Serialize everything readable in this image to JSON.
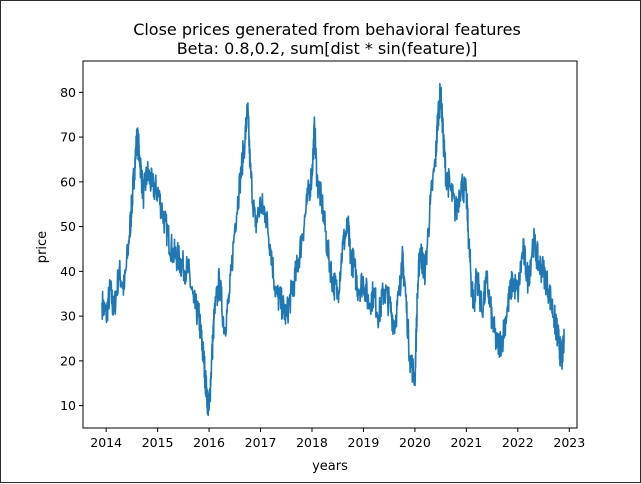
{
  "chart_data": {
    "type": "line",
    "title": "Close prices generated from behavioral features",
    "subtitle": "Beta: 0.8,0.2, sum[dist * sin(feature)]",
    "xlabel": "years",
    "ylabel": "price",
    "xlim": [
      2013.55,
      2023.15
    ],
    "ylim": [
      5,
      87
    ],
    "x_ticks": [
      "2014",
      "2015",
      "2016",
      "2017",
      "2018",
      "2019",
      "2020",
      "2021",
      "2022",
      "2023"
    ],
    "y_ticks": [
      "10",
      "20",
      "30",
      "40",
      "50",
      "60",
      "70",
      "80"
    ],
    "grid": false,
    "line_color": "#1f77b4",
    "series": [
      {
        "x": [
          2013.92,
          2014.0,
          2014.08,
          2014.15,
          2014.25,
          2014.35,
          2014.45,
          2014.5,
          2014.55,
          2014.6,
          2014.65,
          2014.72,
          2014.8,
          2014.9,
          2015.0,
          2015.1,
          2015.2,
          2015.3,
          2015.4,
          2015.5,
          2015.6,
          2015.7,
          2015.8,
          2015.85,
          2015.9,
          2015.95,
          2016.0,
          2016.05,
          2016.1,
          2016.2,
          2016.3,
          2016.4,
          2016.5,
          2016.6,
          2016.7,
          2016.75,
          2016.8,
          2016.9,
          2017.0,
          2017.1,
          2017.2,
          2017.3,
          2017.4,
          2017.5,
          2017.6,
          2017.7,
          2017.8,
          2017.9,
          2018.0,
          2018.05,
          2018.1,
          2018.2,
          2018.3,
          2018.4,
          2018.5,
          2018.6,
          2018.7,
          2018.75,
          2018.8,
          2018.9,
          2019.0,
          2019.1,
          2019.2,
          2019.3,
          2019.4,
          2019.5,
          2019.6,
          2019.7,
          2019.75,
          2019.8,
          2019.9,
          2020.0,
          2020.05,
          2020.1,
          2020.15,
          2020.2,
          2020.3,
          2020.4,
          2020.45,
          2020.5,
          2020.55,
          2020.6,
          2020.7,
          2020.8,
          2020.9,
          2021.0,
          2021.05,
          2021.1,
          2021.15,
          2021.2,
          2021.3,
          2021.4,
          2021.5,
          2021.6,
          2021.7,
          2021.8,
          2021.9,
          2022.0,
          2022.1,
          2022.2,
          2022.3,
          2022.4,
          2022.5,
          2022.6,
          2022.7,
          2022.75,
          2022.8,
          2022.85,
          2022.9
        ],
        "y": [
          33,
          30,
          36,
          31,
          40,
          36,
          48,
          55,
          63,
          70,
          66,
          57,
          62,
          59,
          58,
          53,
          48,
          44,
          43,
          41,
          40,
          33,
          30,
          25,
          20,
          13,
          9,
          20,
          30,
          38,
          27,
          35,
          50,
          60,
          70,
          76,
          63,
          50,
          55,
          53,
          45,
          35,
          33,
          30,
          35,
          40,
          47,
          55,
          62,
          72,
          60,
          55,
          45,
          38,
          35,
          46,
          50,
          43,
          42,
          36,
          38,
          33,
          35,
          30,
          36,
          33,
          28,
          35,
          43,
          38,
          21,
          16,
          35,
          45,
          42,
          40,
          55,
          65,
          75,
          80,
          70,
          62,
          58,
          53,
          60,
          57,
          46,
          37,
          32,
          40,
          31,
          38,
          29,
          23,
          25,
          32,
          38,
          35,
          45,
          38,
          47,
          42,
          40,
          36,
          30,
          27,
          24,
          20,
          24
        ]
      }
    ]
  }
}
